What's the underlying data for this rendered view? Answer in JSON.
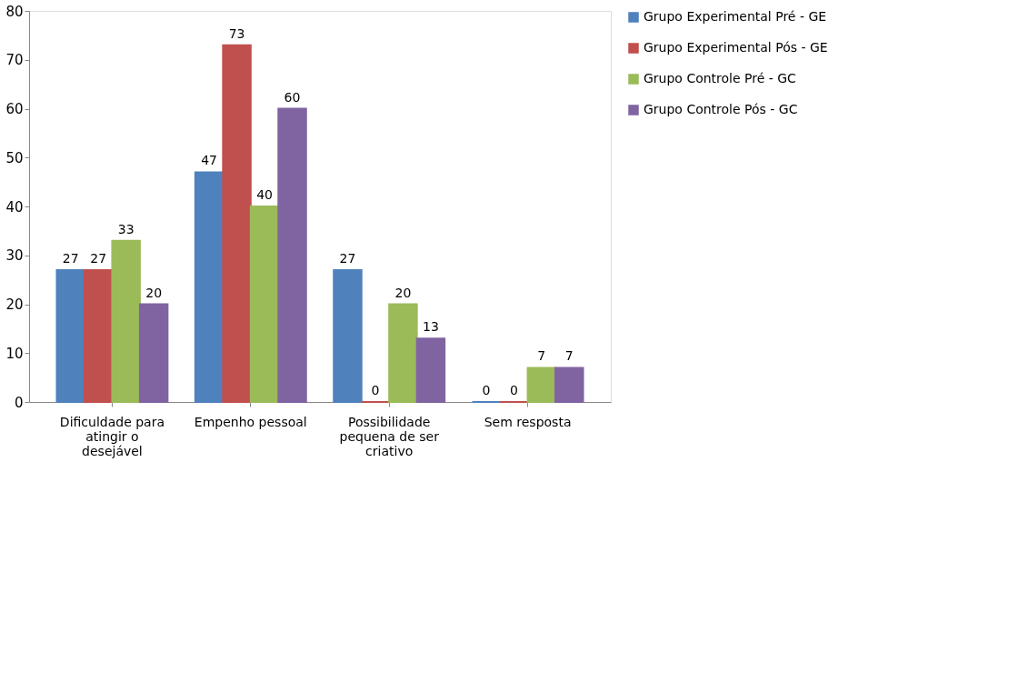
{
  "chart_data": {
    "type": "bar",
    "categories": [
      "Dificuldade para atingir o desejável",
      "Empenho pessoal",
      "Possibilidade pequena de ser criativo",
      "Sem resposta"
    ],
    "series": [
      {
        "name": "Grupo Experimental Pré - GE",
        "color": "#4f81bd",
        "values": [
          27,
          47,
          27,
          0
        ]
      },
      {
        "name": "Grupo Experimental Pós - GE",
        "color": "#c0504d",
        "values": [
          27,
          73,
          0,
          0
        ]
      },
      {
        "name": "Grupo Controle Pré - GC",
        "color": "#9bbb59",
        "values": [
          33,
          40,
          20,
          7
        ]
      },
      {
        "name": "Grupo Controle Pós - GC",
        "color": "#8064a2",
        "values": [
          20,
          60,
          13,
          7
        ]
      }
    ],
    "ylim": [
      0,
      80
    ],
    "yticks": [
      0,
      10,
      20,
      30,
      40,
      50,
      60,
      70,
      80
    ],
    "grid": false,
    "legend": "top right",
    "data_labels": true
  }
}
